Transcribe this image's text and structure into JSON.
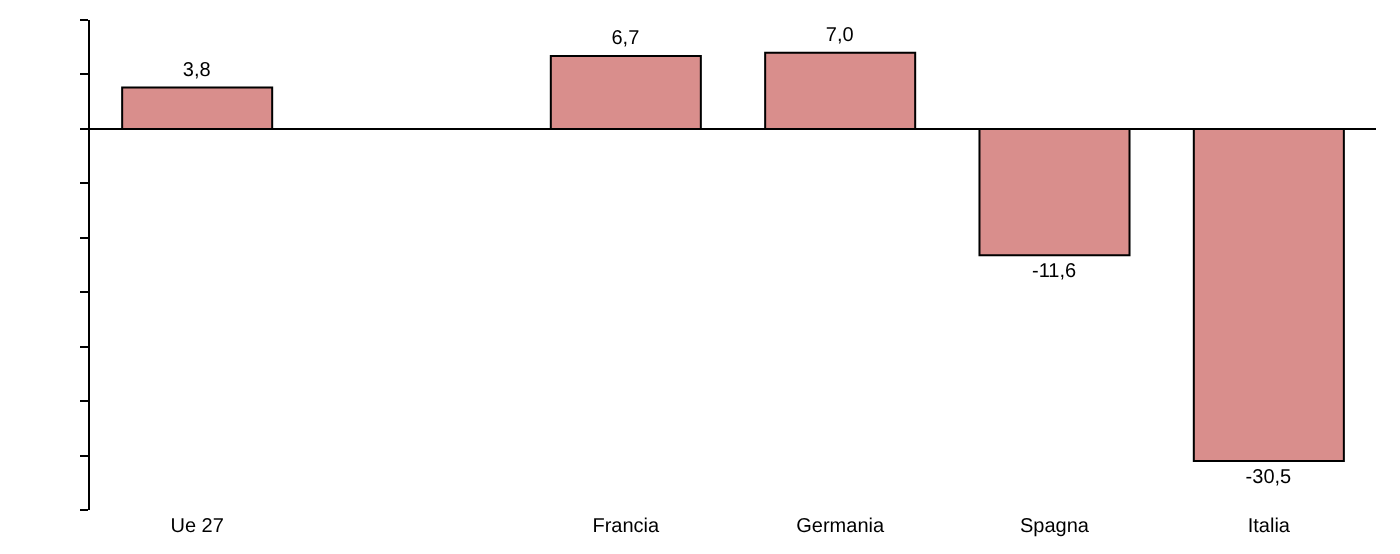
{
  "chart_data": {
    "type": "bar",
    "categories": [
      "Ue 27",
      null,
      "Francia",
      "Germania",
      "Spagna",
      "Italia"
    ],
    "values": [
      3.8,
      null,
      6.7,
      7.0,
      -11.6,
      -30.5
    ],
    "value_labels": [
      "3,8",
      null,
      "6,7",
      "7,0",
      "-11,6",
      "-30,5"
    ],
    "color": "#d98e8c",
    "ylim": [
      -35,
      10
    ],
    "yticks": [
      {
        "value": -35,
        "label": null
      },
      {
        "value": -30,
        "label": null
      },
      {
        "value": -25,
        "label": null
      },
      {
        "value": -20,
        "label": null
      },
      {
        "value": -15,
        "label": null
      },
      {
        "value": -10,
        "label": null
      },
      {
        "value": -5,
        "label": null
      },
      {
        "value": 0,
        "label": null
      },
      {
        "value": 5,
        "label": null
      },
      {
        "value": 10,
        "label": null
      }
    ],
    "tick_labels": "x",
    "grid": false,
    "legend": false
  }
}
